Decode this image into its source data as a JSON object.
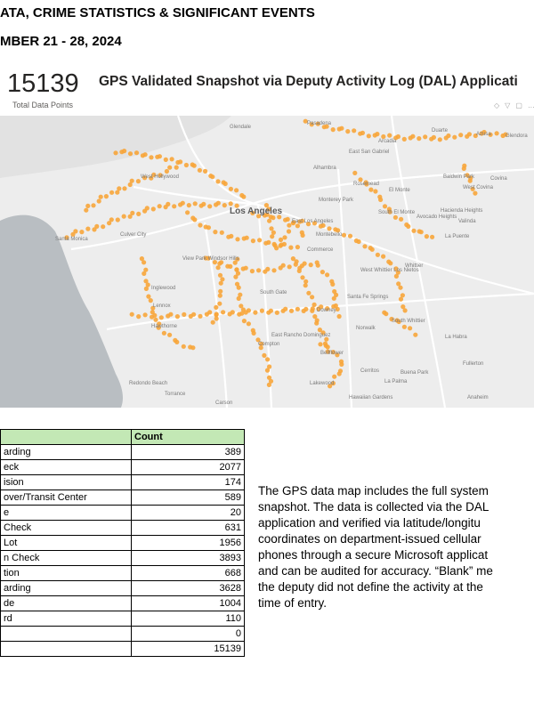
{
  "header": {
    "line1": "ATA, CRIME STATISTICS & SIGNIFICANT EVENTS",
    "line2": "MBER 21 - 28, 2024"
  },
  "visual": {
    "kpi_value": "15139",
    "kpi_label": "Total Data Points",
    "title": "GPS Validated Snapshot via Deputy Activity Log (DAL) Applicati",
    "icons": [
      "pin-icon",
      "filter-icon",
      "focus-icon",
      "more-icon"
    ],
    "point_color": "#f7a53a",
    "map_labels": {
      "glendale": "Glendale",
      "pasadena": "Pasadena",
      "arcadia": "Arcadia",
      "duarte": "Duarte",
      "azusa": "Azusa",
      "glendora": "Glendora",
      "east_san_gabriel": "East San Gabriel",
      "alhambra": "Alhambra",
      "rosemead": "Rosemead",
      "el_monte": "El Monte",
      "baldwin_park": "Baldwin Park",
      "covina": "Covina",
      "west_covina": "West Covina",
      "west_hollywood": "West Hollywood",
      "los_angeles": "Los Angeles",
      "monterey_park": "Monterey Park",
      "east_los_angeles": "East Los Angeles",
      "south_el_monte": "South El Monte",
      "avocado_heights": "Avocado Heights",
      "hacienda_heights": "Hacienda Heights",
      "valinda": "Valinda",
      "la_puente": "La Puente",
      "santa_monica": "Santa Monica",
      "culver_city": "Culver City",
      "montebello": "Montebello",
      "view_park": "View Park Windsor Hills",
      "commerce": "Commerce",
      "inglewood": "Inglewood",
      "south_gate": "South Gate",
      "west_whittier": "West Whittier Los Nietos",
      "whittier": "Whittier",
      "santa_fe_springs": "Santa Fe Springs",
      "lennox": "Lennox",
      "downey": "Downey",
      "hawthorne": "Hawthorne",
      "norwalk": "Norwalk",
      "south_whittier": "South Whittier",
      "la_habra": "La Habra",
      "east_rancho": "East Rancho Dominguez",
      "bellflower": "Bellflower",
      "fullerton": "Fullerton",
      "redondo": "Redondo Beach",
      "torrance": "Torrance",
      "lakewood": "Lakewood",
      "cerritos": "Cerritos",
      "buena_park": "Buena Park",
      "la_palma": "La Palma",
      "hawaiian_gardens": "Hawaiian Gardens",
      "anaheim": "Anaheim",
      "carson": "Carson",
      "compton": "Compton"
    }
  },
  "table": {
    "header_col1": "",
    "header_col2": "Count",
    "rows": [
      {
        "label": "arding",
        "count": "389"
      },
      {
        "label": "eck",
        "count": "2077"
      },
      {
        "label": "ision",
        "count": "174"
      },
      {
        "label": "over/Transit Center",
        "count": "589"
      },
      {
        "label": "e",
        "count": "20"
      },
      {
        "label": " Check",
        "count": "631"
      },
      {
        "label": " Lot",
        "count": "1956"
      },
      {
        "label": "n Check",
        "count": "3893"
      },
      {
        "label": "tion",
        "count": "668"
      },
      {
        "label": "arding",
        "count": "3628"
      },
      {
        "label": "de",
        "count": "1004"
      },
      {
        "label": "rd",
        "count": "110"
      },
      {
        "label": "",
        "count": "0"
      },
      {
        "label": "",
        "count": "15139"
      }
    ]
  },
  "description": {
    "l1": "The GPS data map includes the full system",
    "l2": "snapshot. The data is collected via the DAL",
    "l3": "application and verified via latitude/longitu",
    "l4": "coordinates on department-issued cellular",
    "l5": "phones through a secure Microsoft applicat",
    "l6": "and can be audited for accuracy. “Blank” me",
    "l7": "the deputy did not define the activity at the",
    "l8": "time of entry."
  }
}
